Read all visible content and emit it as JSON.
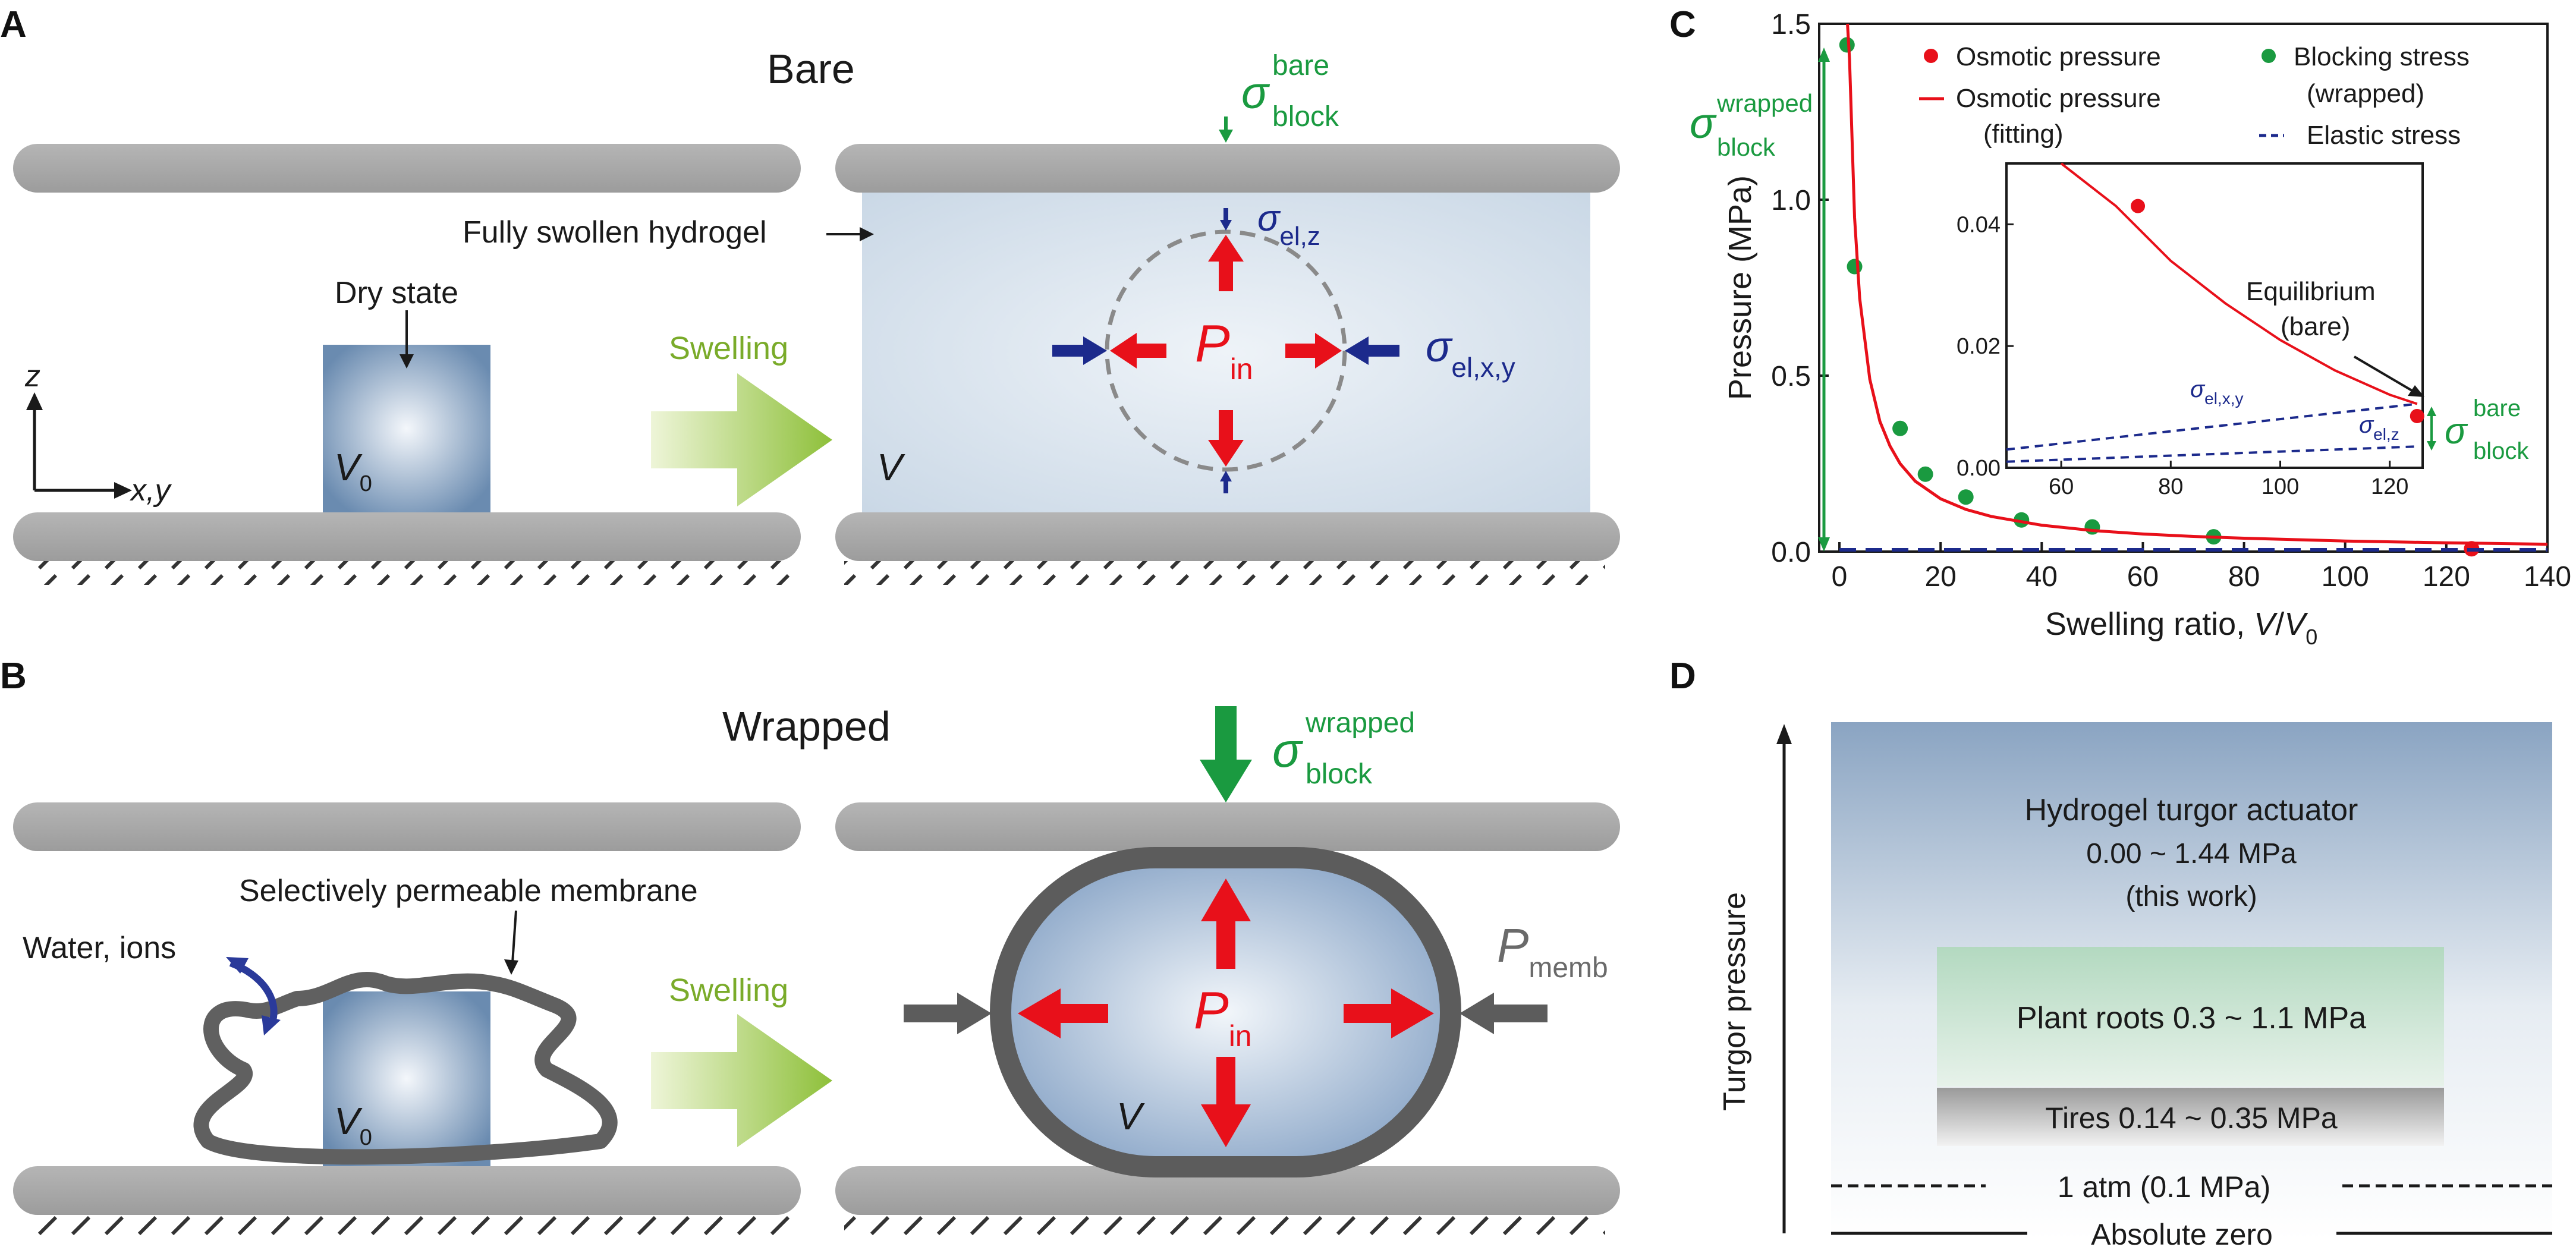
{
  "panels": {
    "a": "A",
    "b": "B",
    "c": "C",
    "d": "D"
  },
  "panel_a": {
    "title": "Bare",
    "dry_state": "Dry state",
    "swelling": "Swelling",
    "fully_swollen": "Fully swollen hydrogel",
    "v0_main": "V",
    "v0_sub": "0",
    "v": "V",
    "axis_z": "z",
    "axis_xy": "x,y",
    "sigma": "σ",
    "block_sup": "bare",
    "block_sub": "block",
    "elz_sub": "el,z",
    "elxy_sub": "el,x,y",
    "p_main": "P",
    "p_sub": "in"
  },
  "panel_b": {
    "title": "Wrapped",
    "membrane": "Selectively permeable membrane",
    "water_ions": "Water, ions",
    "swelling": "Swelling",
    "v0_main": "V",
    "v0_sub": "0",
    "v": "V",
    "sigma": "σ",
    "block_sup": "wrapped",
    "block_sub": "block",
    "p_main": "P",
    "p_sub": "in",
    "pmemb_main": "P",
    "pmemb_sub": "memb"
  },
  "panel_d": {
    "axis_label": "Turgor pressure",
    "hydrogel_l1": "Hydrogel turgor actuator",
    "hydrogel_l2": "0.00 ~ 1.44 MPa",
    "hydrogel_l3": "(this work)",
    "plant": "Plant roots 0.3 ~ 1.1 MPa",
    "tires": "Tires 0.14 ~ 0.35 MPa",
    "atm": "1 atm (0.1 MPa)",
    "zero": "Absolute zero"
  },
  "colors": {
    "osmotic": "#e8101a",
    "blocking": "#1a9a40",
    "elastic": "#1c2a8c",
    "plate": "#a9a9a9",
    "arrow_green": "#6fb524"
  },
  "chart_data": {
    "type": "scatter",
    "xlabel": "Swelling ratio, V/V0",
    "ylabel": "Pressure (MPa)",
    "xlim": [
      -4,
      140
    ],
    "ylim": [
      0,
      1.5
    ],
    "xticks": [
      "0",
      "20",
      "40",
      "60",
      "80",
      "100",
      "120",
      "140"
    ],
    "yticks": [
      "0.0",
      "0.5",
      "1.0",
      "1.5"
    ],
    "legend": {
      "osmotic_points": "Osmotic pressure",
      "osmotic_fit_l1": "Osmotic pressure",
      "osmotic_fit_l2": "(fitting)",
      "blocking_l1": "Blocking stress",
      "blocking_l2": "(wrapped)",
      "elastic": "Elastic stress"
    },
    "annotation_wrapped": {
      "sigma": "σ",
      "sup": "wrapped",
      "sub": "block"
    },
    "series": [
      {
        "name": "Osmotic pressure",
        "kind": "points",
        "x": [
          125
        ],
        "y": [
          0.008
        ]
      },
      {
        "name": "Blocking stress",
        "kind": "points",
        "x": [
          1.5,
          3,
          12,
          17,
          25,
          36,
          50,
          74
        ],
        "y": [
          1.44,
          0.81,
          0.35,
          0.22,
          0.155,
          0.09,
          0.07,
          0.042
        ]
      },
      {
        "name": "Osmotic pressure (fitting)",
        "kind": "fit",
        "x": [
          1.6,
          2,
          3,
          4,
          6,
          8,
          10,
          12,
          15,
          20,
          25,
          30,
          40,
          50,
          60,
          70,
          80,
          100,
          120,
          140
        ],
        "y": [
          1.5,
          1.4,
          0.95,
          0.72,
          0.49,
          0.37,
          0.3,
          0.25,
          0.2,
          0.15,
          0.12,
          0.1,
          0.075,
          0.06,
          0.05,
          0.043,
          0.038,
          0.03,
          0.025,
          0.021
        ]
      },
      {
        "name": "Elastic stress",
        "kind": "dashed",
        "x": [
          0,
          140
        ],
        "y": [
          0.005,
          0.005
        ]
      }
    ],
    "inset": {
      "xlim": [
        50,
        126
      ],
      "ylim": [
        0,
        0.05
      ],
      "xticks": [
        "60",
        "80",
        "100",
        "120"
      ],
      "yticks": [
        "0.00",
        "0.02",
        "0.04"
      ],
      "osmotic_points": {
        "x": [
          74,
          125
        ],
        "y": [
          0.043,
          0.0085
        ]
      },
      "fit": {
        "x": [
          60,
          70,
          80,
          90,
          100,
          110,
          120,
          125
        ],
        "y": [
          0.05,
          0.043,
          0.034,
          0.027,
          0.021,
          0.016,
          0.012,
          0.0105
        ]
      },
      "el_xy": {
        "x": [
          50,
          125
        ],
        "y": [
          0.003,
          0.0105
        ]
      },
      "el_z": {
        "x": [
          50,
          125
        ],
        "y": [
          0.001,
          0.0035
        ]
      },
      "equilibrium_l1": "Equilibrium",
      "equilibrium_l2": "(bare)",
      "sigma": "σ",
      "elxy_sub": "el,x,y",
      "elz_sub": "el,z",
      "bare_sup": "bare",
      "bare_sub": "block"
    }
  }
}
